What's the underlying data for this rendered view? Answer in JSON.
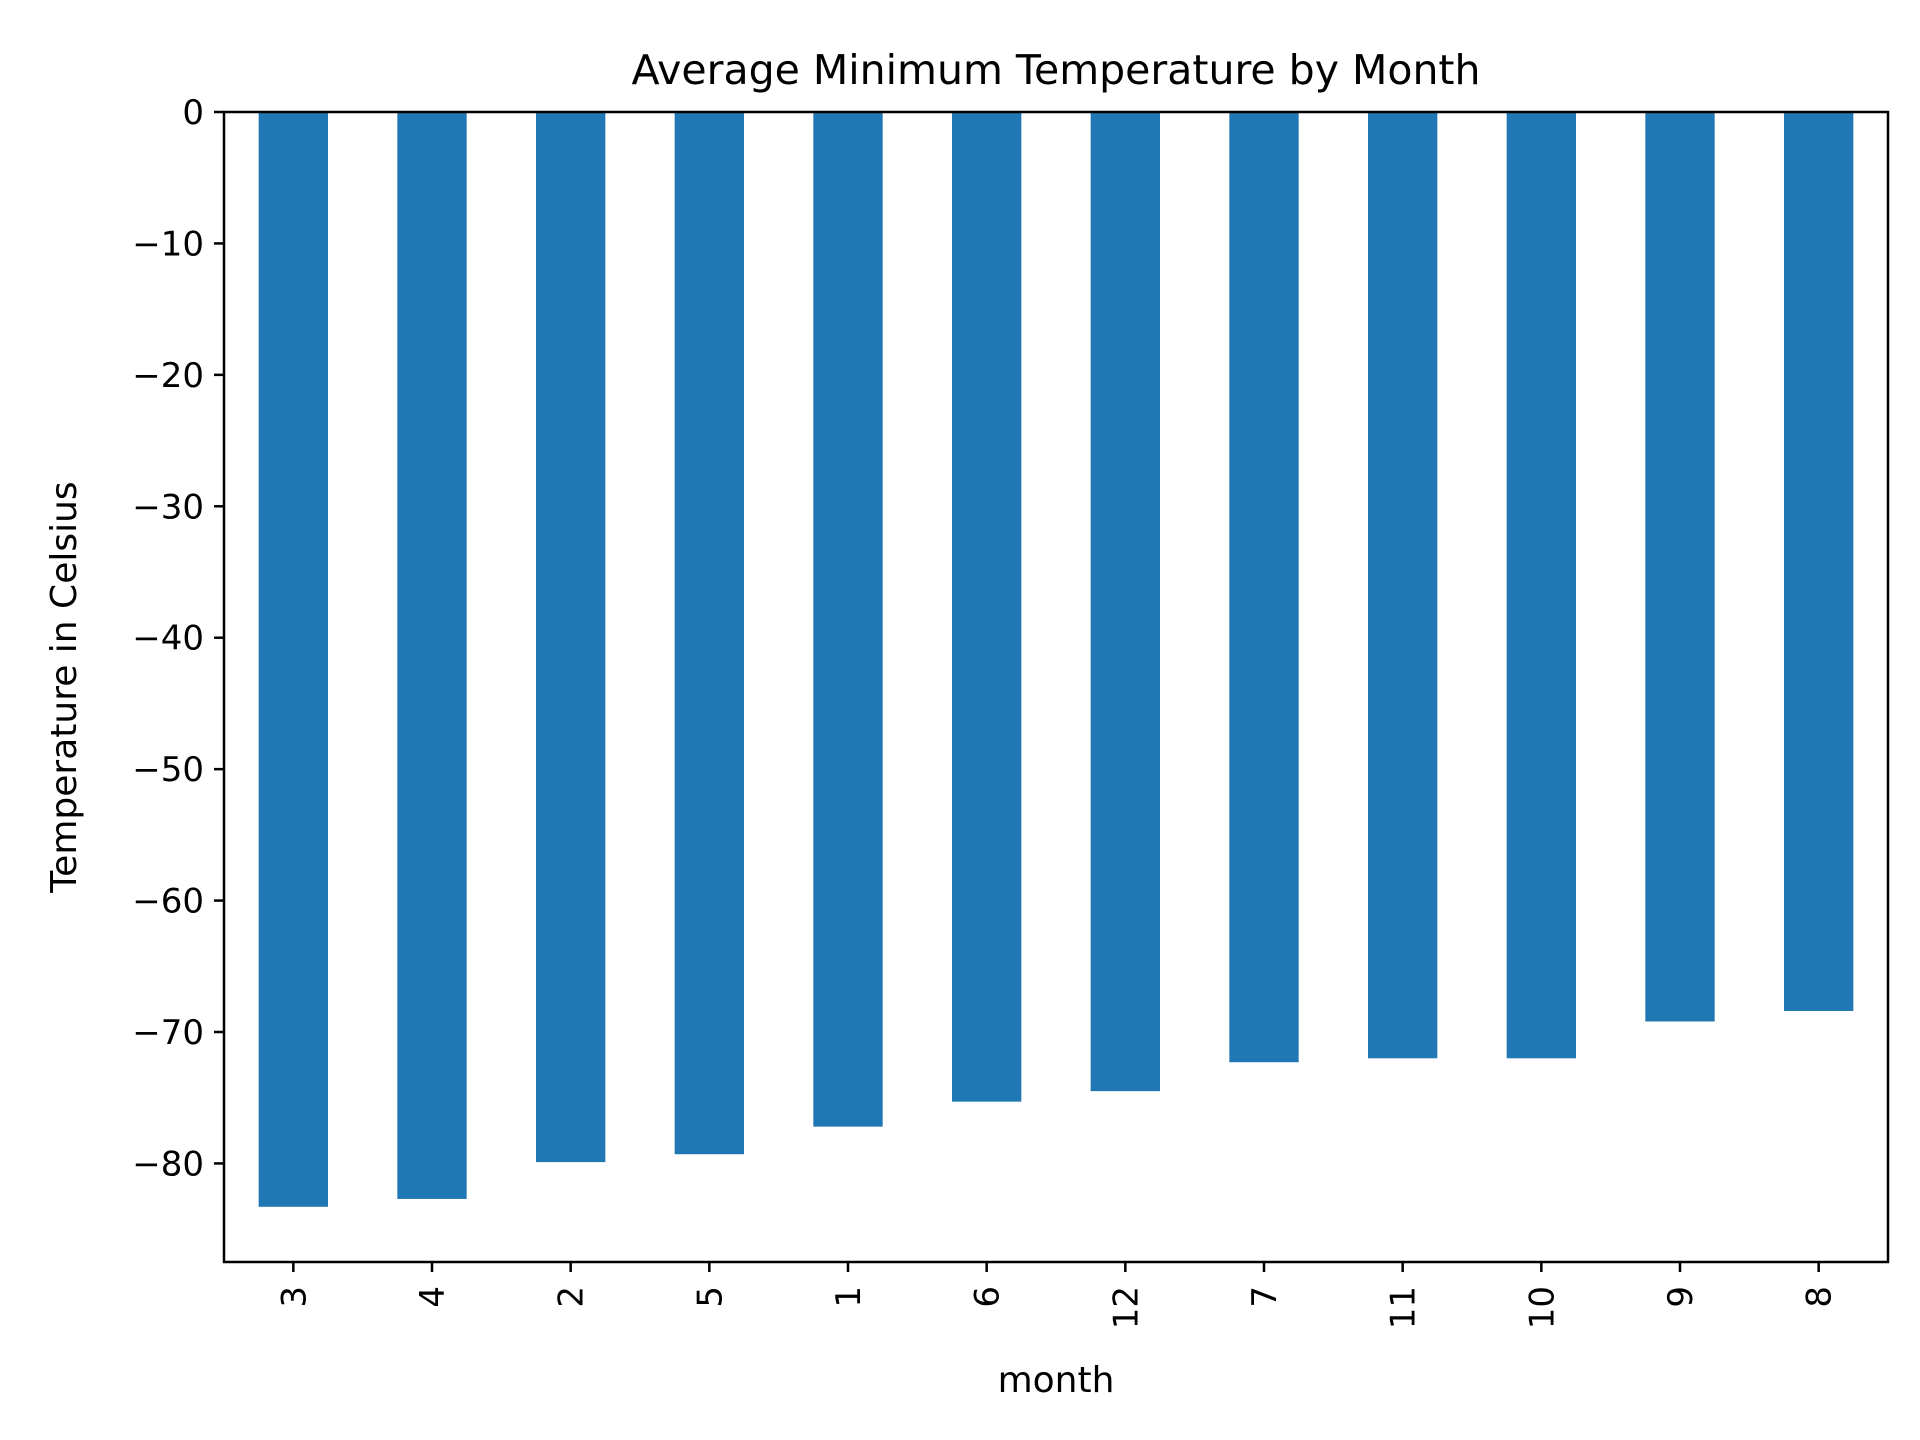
{
  "chart_data": {
    "type": "bar",
    "title": "Average Minimum Temperature by Month",
    "xlabel": "month",
    "ylabel": "Temperature in Celsius",
    "categories": [
      "3",
      "4",
      "2",
      "5",
      "1",
      "6",
      "12",
      "7",
      "11",
      "10",
      "9",
      "8"
    ],
    "values": [
      -83.3,
      -82.7,
      -79.9,
      -79.3,
      -77.2,
      -75.3,
      -74.5,
      -72.3,
      -72.0,
      -72.0,
      -69.2,
      -68.4
    ],
    "ylim": [
      -87.5,
      0
    ],
    "yticks": [
      0,
      -10,
      -20,
      -30,
      -40,
      -50,
      -60,
      -70,
      -80
    ],
    "ytick_labels": [
      "0",
      "−10",
      "−20",
      "−30",
      "−40",
      "−50",
      "−60",
      "−70",
      "−80"
    ],
    "grid": false,
    "legend": "none",
    "bar_color": "#1f77b4"
  }
}
